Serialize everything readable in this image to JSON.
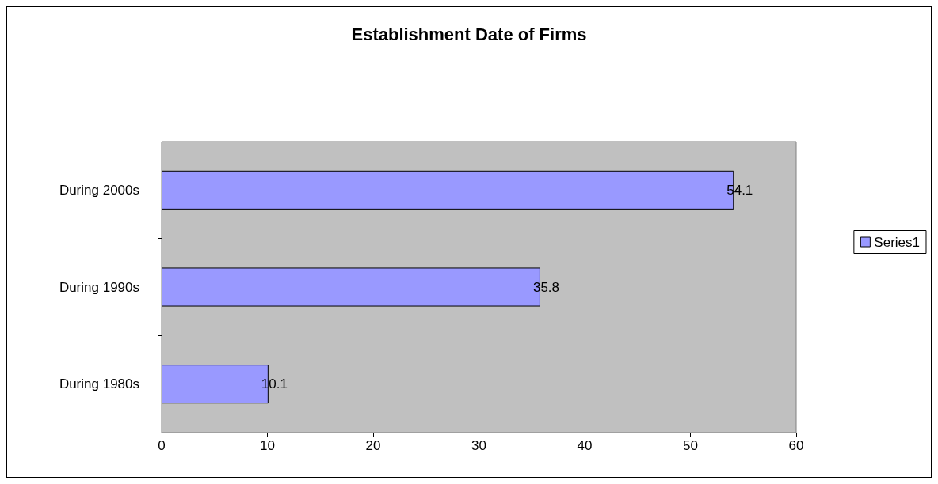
{
  "chart_data": {
    "type": "bar",
    "orientation": "horizontal",
    "title": "Establishment Date of Firms",
    "categories": [
      "During 2000s",
      "During 1990s",
      "During 1980s"
    ],
    "series": [
      {
        "name": "Series1",
        "color": "#9999ff",
        "values": [
          54.1,
          35.8,
          10.1
        ]
      }
    ],
    "xlim": [
      0,
      60
    ],
    "xticks": [
      0,
      10,
      20,
      30,
      40,
      50,
      60
    ],
    "grid": false,
    "legend": "right",
    "data_labels": true
  }
}
